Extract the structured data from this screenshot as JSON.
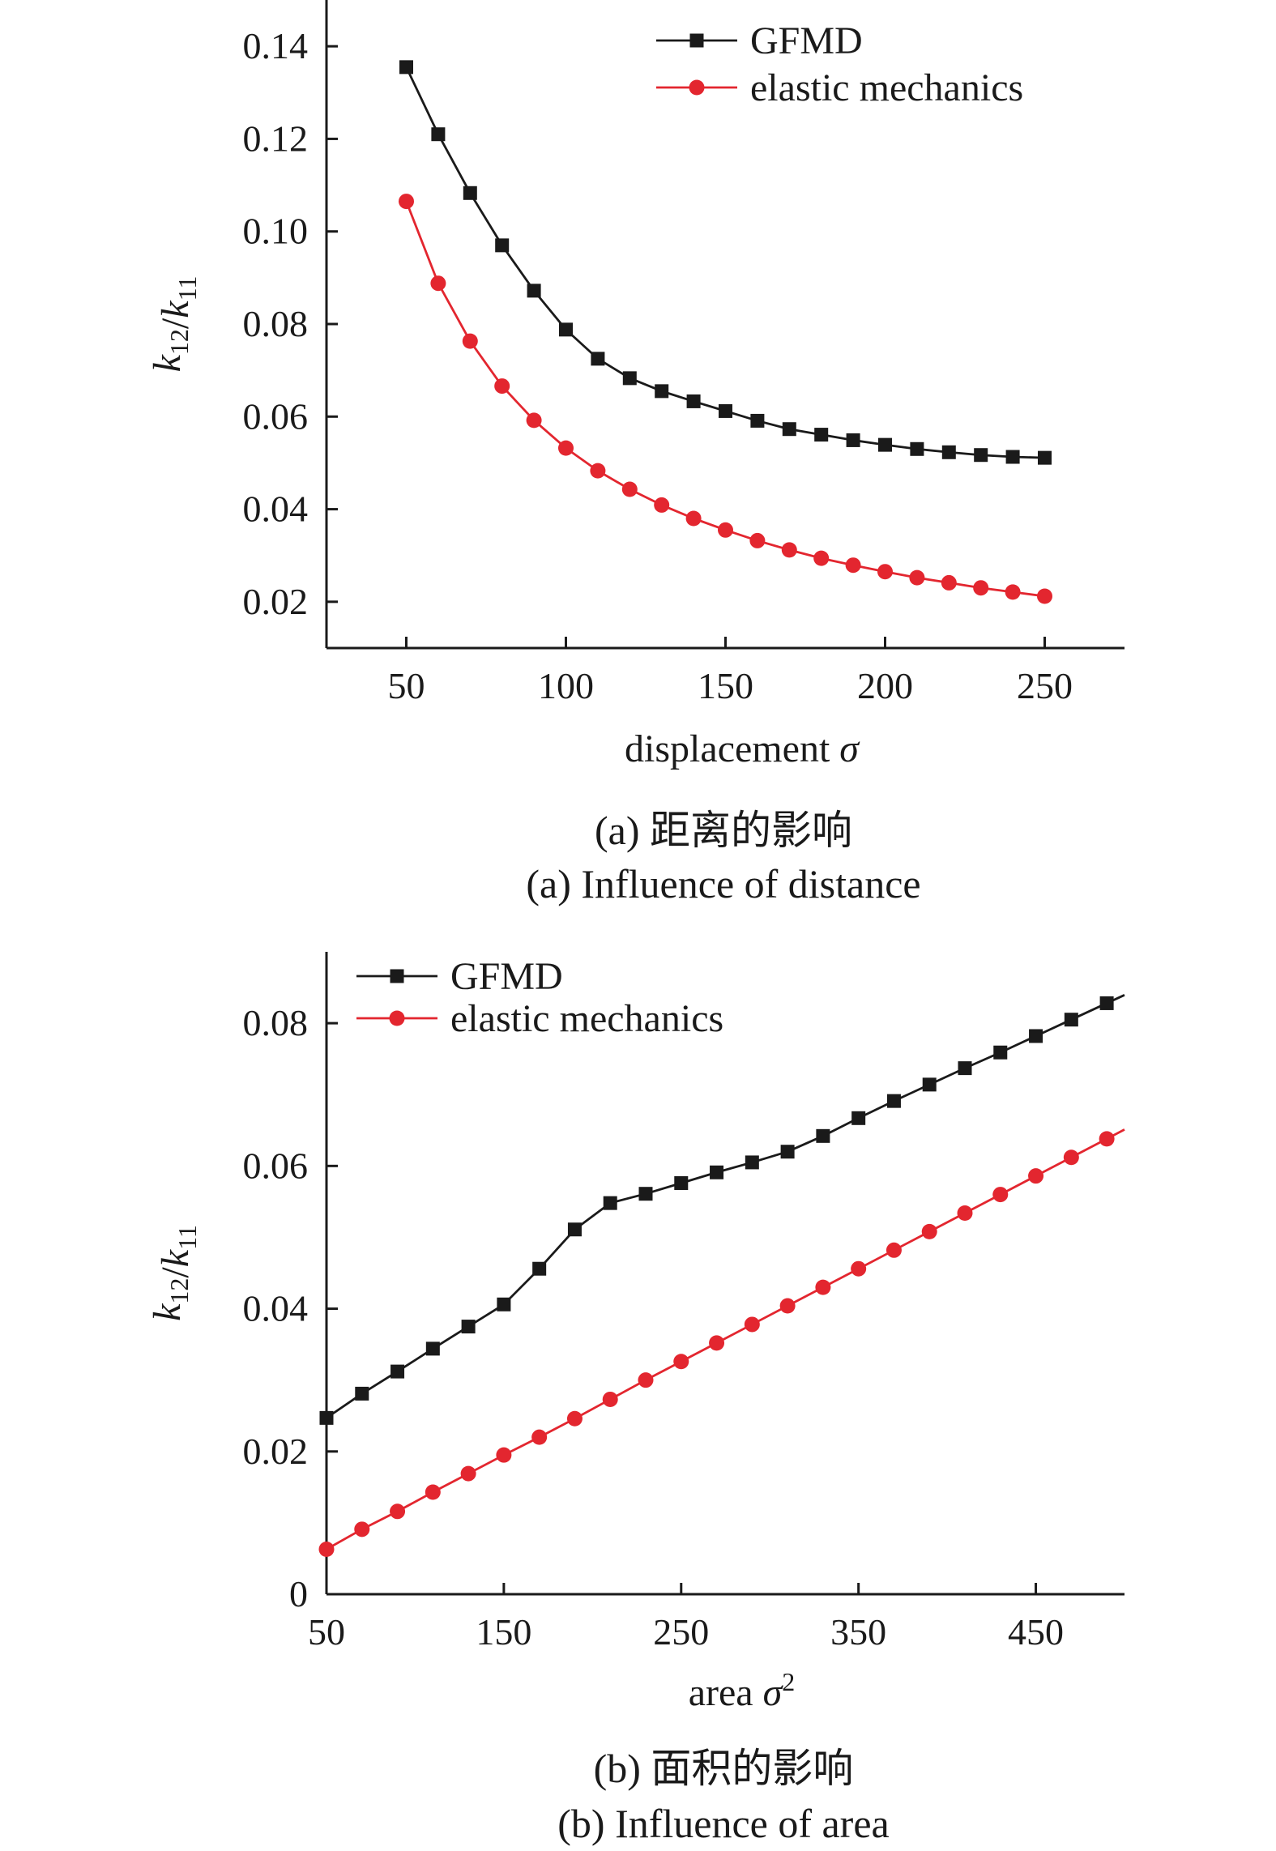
{
  "chart_data": [
    {
      "type": "line",
      "title": "",
      "xlabel": "displacement σ",
      "ylabel": "k12/k11",
      "xlim": [
        25,
        275
      ],
      "ylim": [
        0.01,
        0.15
      ],
      "x_ticks": [
        50,
        100,
        150,
        200,
        250
      ],
      "x_tick_labels": [
        "50",
        "100",
        "150",
        "200",
        "250"
      ],
      "y_ticks": [
        0.02,
        0.04,
        0.06,
        0.08,
        0.1,
        0.12,
        0.14
      ],
      "y_tick_labels": [
        "0.02",
        "0.04",
        "0.06",
        "0.08",
        "0.10",
        "0.12",
        "0.14"
      ],
      "grid": false,
      "legend_position": "top-right",
      "x": [
        50,
        60,
        70,
        80,
        90,
        100,
        110,
        120,
        130,
        140,
        150,
        160,
        170,
        180,
        190,
        200,
        210,
        220,
        230,
        240,
        250
      ],
      "series": [
        {
          "name": "GFMD",
          "color": "#1a1a1a",
          "marker": "square",
          "values": [
            0.1355,
            0.121,
            0.1083,
            0.097,
            0.0872,
            0.0788,
            0.0725,
            0.0683,
            0.0655,
            0.0633,
            0.0612,
            0.0591,
            0.0573,
            0.0561,
            0.0549,
            0.0539,
            0.053,
            0.0523,
            0.0517,
            0.0513,
            0.0511
          ]
        },
        {
          "name": "elastic mechanics",
          "color": "#e3262f",
          "marker": "circle",
          "values": [
            0.1065,
            0.0888,
            0.0763,
            0.0666,
            0.0592,
            0.0532,
            0.0483,
            0.0443,
            0.0409,
            0.038,
            0.0355,
            0.0332,
            0.0312,
            0.0294,
            0.0279,
            0.0265,
            0.0252,
            0.0241,
            0.023,
            0.0221,
            0.0212
          ]
        }
      ],
      "caption_cn": "(a) 距离的影响",
      "caption_en": "(a) Influence of distance"
    },
    {
      "type": "line",
      "title": "",
      "xlabel": "area σ²",
      "ylabel": "k12/k11",
      "xlim": [
        50,
        500
      ],
      "ylim": [
        0,
        0.09
      ],
      "x_ticks": [
        50,
        150,
        250,
        350,
        450
      ],
      "x_tick_labels": [
        "50",
        "150",
        "250",
        "350",
        "450"
      ],
      "y_ticks": [
        0,
        0.02,
        0.04,
        0.06,
        0.08
      ],
      "y_tick_labels": [
        "0",
        "0.02",
        "0.04",
        "0.06",
        "0.08"
      ],
      "grid": false,
      "legend_position": "top-left",
      "x": [
        50,
        70,
        90,
        110,
        130,
        150,
        170,
        190,
        210,
        230,
        250,
        270,
        290,
        310,
        330,
        350,
        370,
        390,
        410,
        430,
        450,
        470,
        490
      ],
      "series": [
        {
          "name": "GFMD",
          "color": "#1a1a1a",
          "marker": "square",
          "values": [
            0.0247,
            0.0281,
            0.0312,
            0.0344,
            0.0375,
            0.0406,
            0.0456,
            0.0511,
            0.0548,
            0.0561,
            0.0576,
            0.0591,
            0.0605,
            0.062,
            0.0642,
            0.0667,
            0.0691,
            0.0714,
            0.0737,
            0.0759,
            0.0782,
            0.0805,
            0.0828
          ]
        },
        {
          "name": "elastic mechanics",
          "color": "#e3262f",
          "marker": "circle",
          "values": [
            0.0063,
            0.0091,
            0.0116,
            0.0143,
            0.0169,
            0.0195,
            0.022,
            0.0246,
            0.0273,
            0.03,
            0.0326,
            0.0352,
            0.0378,
            0.0404,
            0.043,
            0.0456,
            0.0482,
            0.0508,
            0.0534,
            0.056,
            0.0586,
            0.0612,
            0.0638
          ]
        }
      ],
      "caption_cn": "(b) 面积的影响",
      "caption_en": "(b) Influence of area"
    }
  ]
}
